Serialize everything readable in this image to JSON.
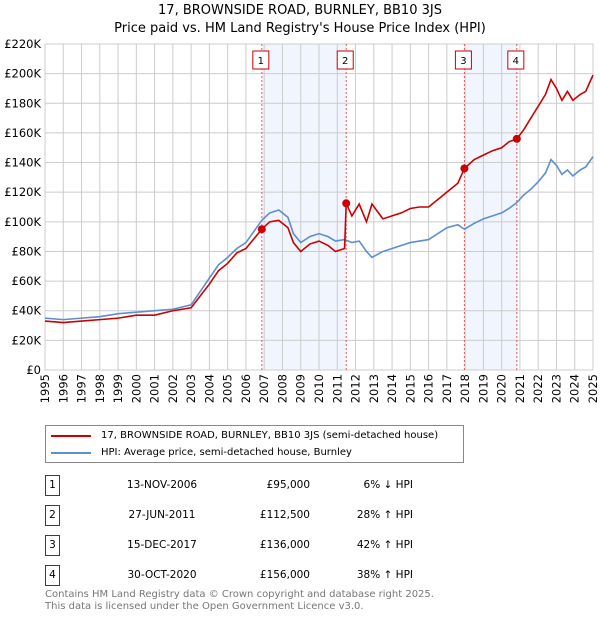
{
  "chart_data": {
    "type": "line",
    "title": "17, BROWNSIDE ROAD, BURNLEY, BB10 3JS",
    "subtitle": "Price paid vs. HM Land Registry's House Price Index (HPI)",
    "xlim": [
      1995,
      2025
    ],
    "ylim": [
      0,
      220000
    ],
    "yticks": [
      {
        "v": 0,
        "label": "£0"
      },
      {
        "v": 20000,
        "label": "£20K"
      },
      {
        "v": 40000,
        "label": "£40K"
      },
      {
        "v": 60000,
        "label": "£60K"
      },
      {
        "v": 80000,
        "label": "£80K"
      },
      {
        "v": 100000,
        "label": "£100K"
      },
      {
        "v": 120000,
        "label": "£120K"
      },
      {
        "v": 140000,
        "label": "£140K"
      },
      {
        "v": 160000,
        "label": "£160K"
      },
      {
        "v": 180000,
        "label": "£180K"
      },
      {
        "v": 200000,
        "label": "£200K"
      },
      {
        "v": 220000,
        "label": "£220K"
      }
    ],
    "xticks": [
      "1995",
      "1996",
      "1997",
      "1998",
      "1999",
      "2000",
      "2001",
      "2002",
      "2003",
      "2004",
      "2005",
      "2006",
      "2007",
      "2008",
      "2009",
      "2010",
      "2011",
      "2012",
      "2013",
      "2014",
      "2015",
      "2016",
      "2017",
      "2018",
      "2019",
      "2020",
      "2021",
      "2022",
      "2023",
      "2024",
      "2025"
    ],
    "grid": true,
    "series": [
      {
        "name": "17, BROWNSIDE ROAD, BURNLEY, BB10 3JS (semi-detached house)",
        "color": "#cc0000",
        "x": [
          1995,
          1996,
          1997,
          1998,
          1999,
          2000,
          2001,
          2002,
          2003,
          2003.5,
          2004,
          2004.5,
          2005,
          2005.5,
          2006,
          2006.87,
          2007.3,
          2007.8,
          2008.3,
          2008.6,
          2009,
          2009.5,
          2010,
          2010.5,
          2010.9,
          2011.4,
          2011.49,
          2011.8,
          2012.2,
          2012.6,
          2012.9,
          2013.5,
          2014,
          2014.5,
          2015,
          2015.5,
          2016,
          2016.5,
          2017,
          2017.6,
          2017.96,
          2018.5,
          2019,
          2019.5,
          2020,
          2020.4,
          2020.83,
          2021.2,
          2021.6,
          2022,
          2022.4,
          2022.7,
          2023,
          2023.3,
          2023.6,
          2023.9,
          2024.3,
          2024.6,
          2025
        ],
        "y": [
          33000,
          32000,
          33000,
          34000,
          35000,
          37000,
          37000,
          40000,
          42000,
          50000,
          58000,
          67000,
          72000,
          79000,
          82000,
          95000,
          100000,
          101000,
          96000,
          86000,
          80000,
          85000,
          87000,
          84000,
          80000,
          82000,
          112500,
          104000,
          112000,
          100000,
          112000,
          102000,
          104000,
          106000,
          109000,
          110000,
          110000,
          115000,
          120000,
          126000,
          136000,
          142000,
          145000,
          148000,
          150000,
          154000,
          156000,
          162000,
          170000,
          178000,
          186000,
          196000,
          190000,
          182000,
          188000,
          182000,
          186000,
          188000,
          199000
        ]
      },
      {
        "name": "HPI: Average price, semi-detached house, Burnley",
        "color": "#5b8fd0",
        "x": [
          1995,
          1996,
          1997,
          1998,
          1999,
          2000,
          2001,
          2002,
          2003,
          2003.5,
          2004,
          2004.5,
          2005,
          2005.5,
          2006,
          2006.87,
          2007.3,
          2007.8,
          2008.3,
          2008.6,
          2009,
          2009.5,
          2010,
          2010.5,
          2010.9,
          2011.4,
          2011.8,
          2012.2,
          2012.6,
          2012.9,
          2013.5,
          2014,
          2014.5,
          2015,
          2015.5,
          2016,
          2016.5,
          2017,
          2017.6,
          2017.96,
          2018.5,
          2019,
          2019.5,
          2020,
          2020.4,
          2020.83,
          2021.2,
          2021.6,
          2022,
          2022.4,
          2022.7,
          2023,
          2023.3,
          2023.6,
          2023.9,
          2024.3,
          2024.6,
          2025
        ],
        "y": [
          35000,
          34000,
          35000,
          36000,
          38000,
          39000,
          40000,
          41000,
          44000,
          53000,
          62000,
          71000,
          76000,
          82000,
          86000,
          101000,
          106000,
          108000,
          103000,
          92000,
          86000,
          90000,
          92000,
          90000,
          87000,
          88000,
          86000,
          87000,
          80000,
          76000,
          80000,
          82000,
          84000,
          86000,
          87000,
          88000,
          92000,
          96000,
          98000,
          95000,
          99000,
          102000,
          104000,
          106000,
          109000,
          113000,
          118000,
          122000,
          127000,
          133000,
          142000,
          138000,
          132000,
          135000,
          131000,
          135000,
          137000,
          144000
        ]
      }
    ],
    "sales": [
      {
        "n": "1",
        "x": 2006.87,
        "y": 95000
      },
      {
        "n": "2",
        "x": 2011.49,
        "y": 112500
      },
      {
        "n": "3",
        "x": 2017.96,
        "y": 136000
      },
      {
        "n": "4",
        "x": 2020.83,
        "y": 156000
      }
    ],
    "shaded": [
      [
        2006.87,
        2011.49
      ],
      [
        2017.96,
        2020.83
      ]
    ]
  },
  "legend": {
    "red": "17, BROWNSIDE ROAD, BURNLEY, BB10 3JS (semi-detached house)",
    "blue": "HPI: Average price, semi-detached house, Burnley"
  },
  "table": [
    {
      "n": "1",
      "date": "13-NOV-2006",
      "price": "£95,000",
      "hpi": "6% ↓ HPI"
    },
    {
      "n": "2",
      "date": "27-JUN-2011",
      "price": "£112,500",
      "hpi": "28% ↑ HPI"
    },
    {
      "n": "3",
      "date": "15-DEC-2017",
      "price": "£136,000",
      "hpi": "42% ↑ HPI"
    },
    {
      "n": "4",
      "date": "30-OCT-2020",
      "price": "£156,000",
      "hpi": "38% ↑ HPI"
    }
  ],
  "footer": {
    "line1": "Contains HM Land Registry data © Crown copyright and database right 2025.",
    "line2": "This data is licensed under the Open Government Licence v3.0."
  }
}
